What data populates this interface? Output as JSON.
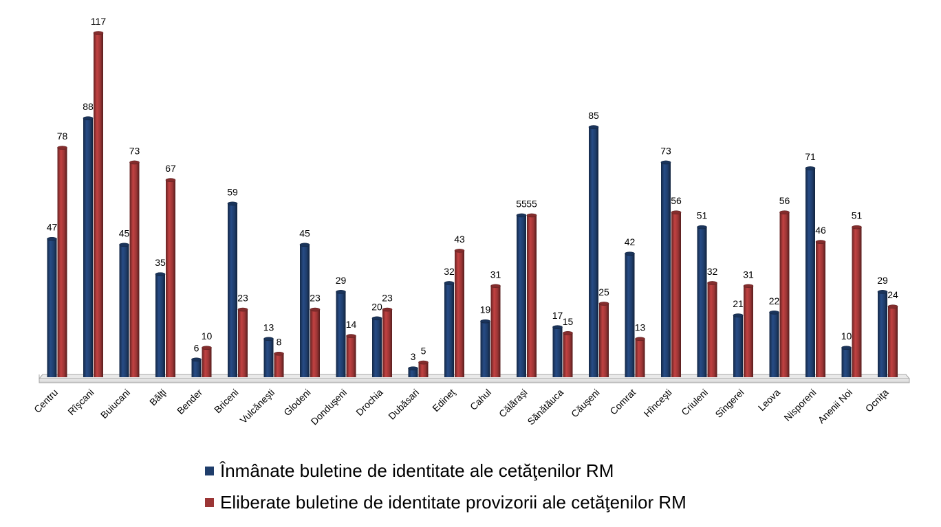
{
  "chart_data": {
    "type": "bar",
    "categories": [
      "Centru",
      "Rîşcani",
      "Buiucani",
      "Bălţi",
      "Bender",
      "Briceni",
      "Vulcăneşti",
      "Glodeni",
      "Donduşeni",
      "Drochia",
      "Dubăsari",
      "Edineţ",
      "Cahul",
      "Călăraşi",
      "Sănătăuca",
      "Căuşeni",
      "Comrat",
      "Hînceşti",
      "Criuleni",
      "Sîngerei",
      "Leova",
      "Nisporeni",
      "Anenii Noi",
      "Ocniţa"
    ],
    "series": [
      {
        "name": "Înmânate buletine de identitate ale cetăţenilor RM",
        "color": "#1f3d6b",
        "values": [
          47,
          88,
          45,
          35,
          6,
          59,
          13,
          45,
          29,
          20,
          3,
          32,
          19,
          55,
          17,
          85,
          42,
          73,
          51,
          21,
          22,
          71,
          10,
          29
        ]
      },
      {
        "name": "Eliberate buletine de identitate provizorii ale cetăţenilor RM",
        "color": "#9b3535",
        "values": [
          78,
          117,
          73,
          67,
          10,
          23,
          8,
          23,
          14,
          23,
          5,
          43,
          31,
          55,
          15,
          25,
          13,
          56,
          32,
          31,
          56,
          46,
          51,
          24
        ]
      }
    ],
    "ylim": [
      0,
      117
    ],
    "grid": false,
    "legend_position": "bottom"
  }
}
